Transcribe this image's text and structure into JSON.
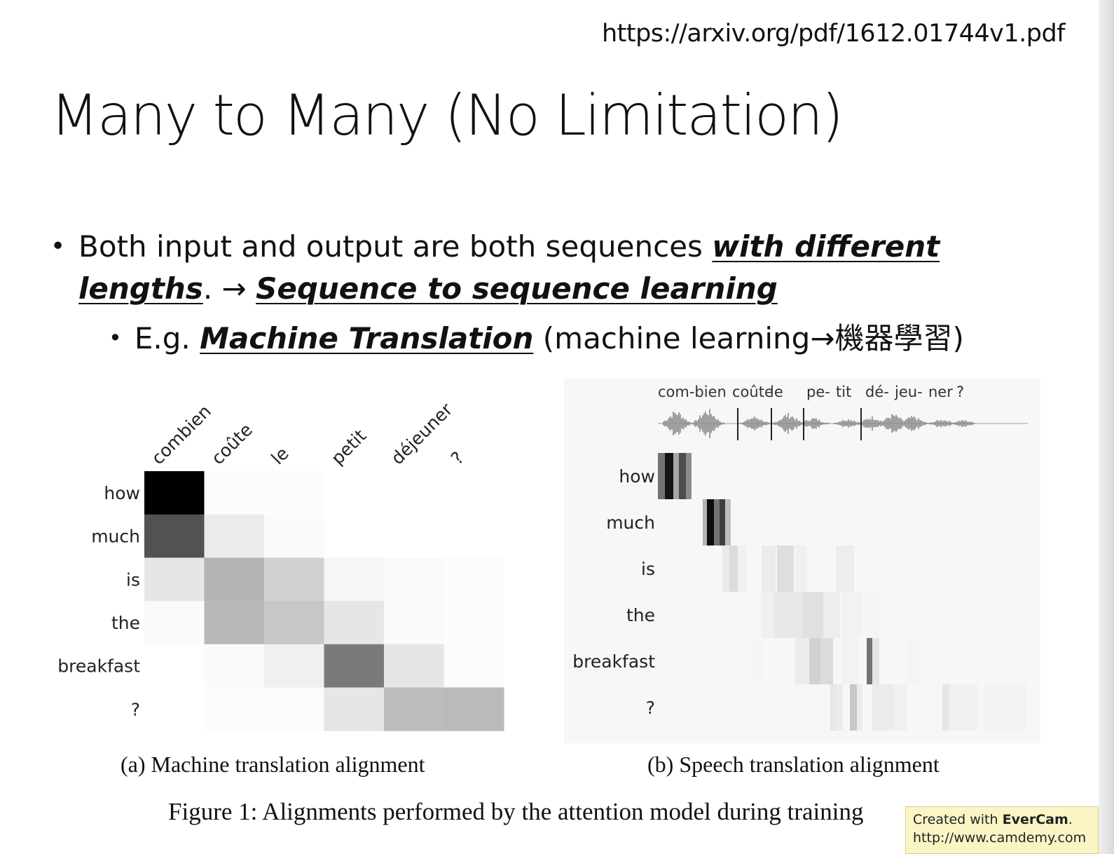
{
  "url": "https://arxiv.org/pdf/1612.01744v1.pdf",
  "title": "Many to Many (No Limitation)",
  "bullet1": {
    "pre": "Both input and output are both sequences ",
    "emph1": "with different lengths",
    "mid": ". → ",
    "emph2": "Sequence to sequence learning"
  },
  "bullet2": {
    "pre": "E.g. ",
    "emph": "Machine Translation",
    "post": " (machine learning→機器學習)"
  },
  "figure": {
    "caption_a": "(a) Machine translation alignment",
    "caption_b": "(b) Speech translation alignment",
    "caption": "Figure 1: Alignments performed by the attention model during training"
  },
  "chart_data": [
    {
      "type": "heatmap",
      "x": [
        "combien",
        "coûte",
        "le",
        "petit",
        "déjeuner",
        "?"
      ],
      "y": [
        "how",
        "much",
        "is",
        "the",
        "breakfast",
        "?"
      ],
      "values": [
        [
          1.0,
          0.01,
          0.01,
          0.0,
          0.0,
          0.0
        ],
        [
          0.68,
          0.08,
          0.02,
          0.0,
          0.0,
          0.0
        ],
        [
          0.1,
          0.3,
          0.18,
          0.03,
          0.02,
          0.01
        ],
        [
          0.02,
          0.28,
          0.22,
          0.1,
          0.02,
          0.01
        ],
        [
          0.0,
          0.02,
          0.06,
          0.52,
          0.1,
          0.01
        ],
        [
          0.0,
          0.01,
          0.01,
          0.1,
          0.26,
          0.27
        ]
      ]
    },
    {
      "type": "heatmap",
      "x": [
        "com-bien",
        "coûte",
        "le",
        "pe-",
        "tit",
        "dé-",
        "jeu-",
        "ner",
        "?"
      ],
      "y": [
        "how",
        "much",
        "is",
        "the",
        "breakfast",
        "?"
      ]
    }
  ],
  "watermark": {
    "line1_pre": "Created with ",
    "line1_brand": "EverCam",
    "line1_post": ".",
    "line2": "http://www.camdemy.com"
  }
}
